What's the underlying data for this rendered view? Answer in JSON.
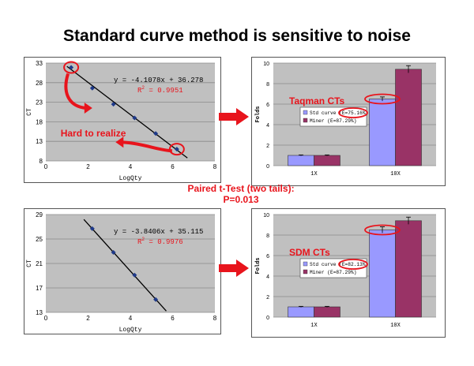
{
  "title": "Standard curve method is sensitive to noise",
  "ttest": {
    "line1": "Paired t-Test (two tails):",
    "line2": "P=0.013"
  },
  "colors": {
    "accent_red": "#e8141c",
    "plot_bg": "#c0c0c0",
    "bar_std": "#9999ff",
    "bar_miner": "#993366",
    "regression_line": "#000000",
    "point": "#1f3a8a"
  },
  "annotations": {
    "hard_to_realize": "Hard to realize",
    "taqman": "Taqman CTs",
    "sdm": "SDM CTs"
  },
  "chart_data": [
    {
      "id": "scatter-top",
      "type": "scatter",
      "xlabel": "LogQty",
      "ylabel": "CT",
      "xlim": [
        0,
        8
      ],
      "ylim": [
        8,
        33
      ],
      "xticks": [
        0,
        2,
        4,
        6,
        8
      ],
      "yticks": [
        8,
        13,
        18,
        23,
        28,
        33
      ],
      "points": [
        [
          1.2,
          31.9
        ],
        [
          2.2,
          26.6
        ],
        [
          3.2,
          22.5
        ],
        [
          4.2,
          19.0
        ],
        [
          5.2,
          15.0
        ],
        [
          6.2,
          11.0
        ]
      ],
      "fit": {
        "slope": -4.1078,
        "intercept": 36.278,
        "x_range": [
          1.0,
          6.7
        ]
      },
      "equation": "y = -4.1078x + 36.278",
      "r2_label": "R",
      "r2_sup": "2",
      "r2_value": " = 0.9951",
      "grid": "horizontal"
    },
    {
      "id": "scatter-bottom",
      "type": "scatter",
      "xlabel": "LogQty",
      "ylabel": "CT",
      "xlim": [
        0,
        8
      ],
      "ylim": [
        13,
        29
      ],
      "xticks": [
        0,
        2,
        4,
        6,
        8
      ],
      "yticks": [
        13,
        17,
        21,
        25,
        29
      ],
      "points": [
        [
          2.2,
          26.7
        ],
        [
          3.2,
          22.8
        ],
        [
          4.2,
          19.1
        ],
        [
          5.2,
          15.1
        ]
      ],
      "fit": {
        "slope": -3.8406,
        "intercept": 35.115,
        "x_range": [
          1.8,
          5.7
        ]
      },
      "equation": "y = -3.8406x + 35.115",
      "r2_label": "R",
      "r2_sup": "2",
      "r2_value": " = 0.9976",
      "grid": "horizontal"
    },
    {
      "id": "bars-top",
      "type": "bar",
      "ylabel": "Folds",
      "categories": [
        "1X",
        "10X"
      ],
      "ylim": [
        0,
        10
      ],
      "yticks": [
        0,
        2,
        4,
        6,
        8,
        10
      ],
      "series": [
        {
          "name": "Std curve (E=75.16%)",
          "values": [
            1.0,
            6.5
          ],
          "errors": [
            0.05,
            0.2
          ]
        },
        {
          "name": "Miner (E=87.29%)",
          "values": [
            1.0,
            9.4
          ],
          "errors": [
            0.05,
            0.35
          ]
        }
      ],
      "legend": "center-left",
      "grid": "horizontal"
    },
    {
      "id": "bars-bottom",
      "type": "bar",
      "ylabel": "Folds",
      "categories": [
        "1X",
        "10X"
      ],
      "ylim": [
        0,
        10
      ],
      "yticks": [
        0,
        2,
        4,
        6,
        8,
        10
      ],
      "series": [
        {
          "name": "Std curve (E=82.13%)",
          "values": [
            1.0,
            8.5
          ],
          "errors": [
            0.05,
            0.3
          ]
        },
        {
          "name": "Miner (E=87.29%)",
          "values": [
            1.0,
            9.4
          ],
          "errors": [
            0.05,
            0.35
          ]
        }
      ],
      "legend": "center-left",
      "grid": "horizontal"
    }
  ]
}
